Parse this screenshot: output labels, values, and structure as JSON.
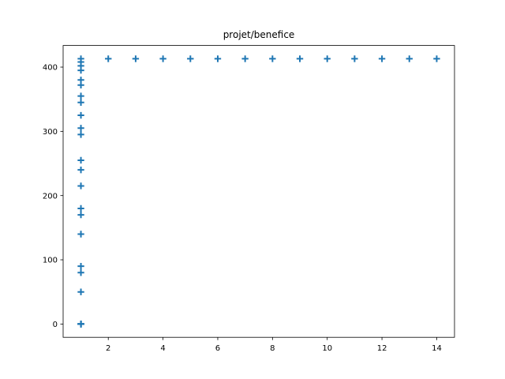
{
  "chart_data": {
    "type": "scatter",
    "title": "projet/benefice",
    "xlabel": "",
    "ylabel": "",
    "xlim": [
      0.35,
      14.65
    ],
    "ylim": [
      -20.7,
      433.7
    ],
    "xticks": [
      2,
      4,
      6,
      8,
      10,
      12,
      14
    ],
    "yticks": [
      0,
      100,
      200,
      300,
      400
    ],
    "grid": false,
    "marker": "plus",
    "color": "#1f77b4",
    "series": [
      {
        "x": [
          1,
          1,
          1,
          1,
          1,
          1,
          1,
          1,
          1,
          1,
          1,
          1,
          1,
          1,
          1,
          1,
          1,
          1,
          1,
          1,
          1,
          1,
          1,
          1,
          1,
          1,
          1,
          2,
          3,
          4,
          5,
          6,
          7,
          8,
          9,
          10,
          11,
          12,
          13,
          14
        ],
        "y": [
          0,
          50,
          80,
          90,
          140,
          170,
          180,
          215,
          240,
          255,
          295,
          305,
          325,
          345,
          355,
          372,
          380,
          395,
          402,
          408,
          413,
          0,
          0,
          0,
          0,
          0,
          0,
          413,
          413,
          413,
          413,
          413,
          413,
          413,
          413,
          413,
          413,
          413,
          413,
          413
        ]
      }
    ]
  }
}
